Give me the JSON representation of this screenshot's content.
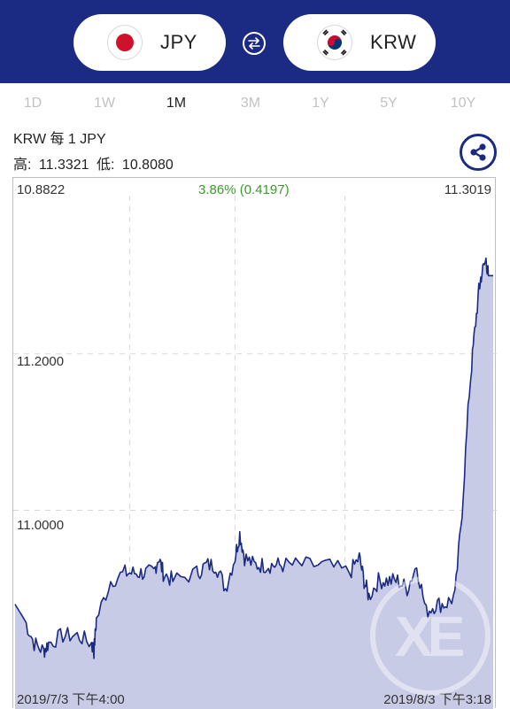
{
  "header": {
    "from_currency": "JPY",
    "to_currency": "KRW",
    "from_flag_icon": "japan-flag-icon",
    "to_flag_icon": "korea-flag-icon",
    "swap_icon": "swap-arrows-icon",
    "background_color": "#1b2a83"
  },
  "tabs": [
    "1D",
    "1W",
    "1M",
    "3M",
    "1Y",
    "5Y",
    "10Y"
  ],
  "active_tab": "1M",
  "info": {
    "pair_title": "KRW 每 1 JPY",
    "high_label": "高:",
    "high_value": "11.3321",
    "low_label": "低:",
    "low_value": "10.8080",
    "share_icon": "share-icon"
  },
  "chart": {
    "start_value": "10.8822",
    "end_value": "11.3019",
    "change_text": "3.86% (0.4197)",
    "change_color": "#3c9a2f",
    "y_tick_1": "11.2000",
    "y_tick_2": "11.0000",
    "start_time": "2019/7/3 下午4:00",
    "end_time": "2019/8/3 下午3:18"
  },
  "chart_data": {
    "type": "area",
    "xlabel": "",
    "ylabel": "",
    "yticks": [
      11.0,
      11.2
    ],
    "ylim": [
      10.78,
      11.4
    ],
    "x": [
      0,
      0.02,
      0.04,
      0.06,
      0.07,
      0.1,
      0.13,
      0.16,
      0.165,
      0.17,
      0.2,
      0.23,
      0.25,
      0.27,
      0.29,
      0.3,
      0.31,
      0.33,
      0.38,
      0.4,
      0.42,
      0.44,
      0.46,
      0.47,
      0.48,
      0.5,
      0.52,
      0.54,
      0.56,
      0.6,
      0.65,
      0.7,
      0.72,
      0.73,
      0.74,
      0.76,
      0.78,
      0.8,
      0.82,
      0.84,
      0.86,
      0.88,
      0.9,
      0.92,
      0.935,
      0.95,
      0.96,
      0.97,
      0.975,
      0.985,
      0.99,
      1.0
    ],
    "values": [
      10.88,
      10.86,
      10.83,
      10.82,
      10.83,
      10.84,
      10.84,
      10.83,
      10.82,
      10.86,
      10.91,
      10.92,
      10.92,
      10.92,
      10.92,
      10.94,
      10.92,
      10.91,
      10.92,
      10.93,
      10.93,
      10.9,
      10.94,
      10.97,
      10.94,
      10.93,
      10.93,
      10.93,
      10.93,
      10.93,
      10.93,
      10.92,
      10.94,
      10.91,
      10.89,
      10.91,
      10.91,
      10.91,
      10.9,
      10.93,
      10.87,
      10.88,
      10.88,
      10.89,
      11.0,
      11.15,
      11.22,
      11.28,
      11.3,
      11.32,
      11.3,
      11.3
    ],
    "grid": true
  }
}
